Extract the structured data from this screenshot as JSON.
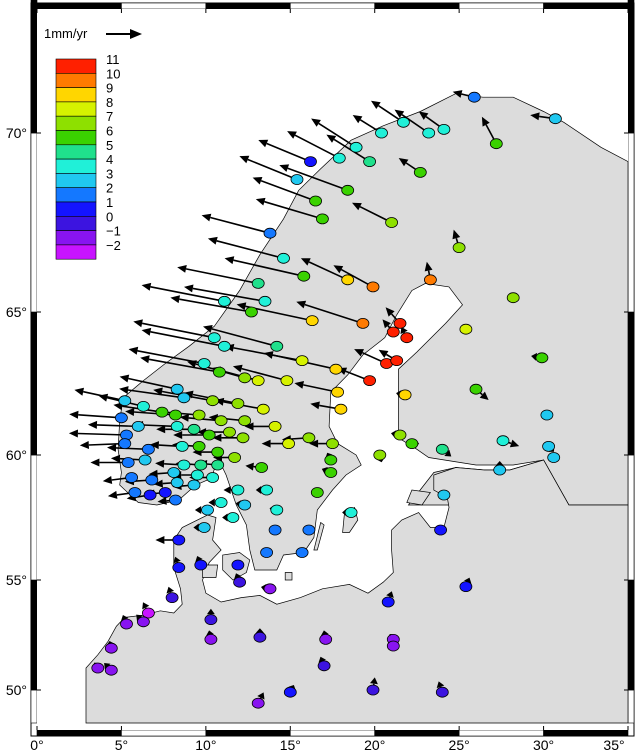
{
  "map": {
    "scale_label": "1mm/yr",
    "lon_ticks": [
      "0°",
      "5°",
      "10°",
      "15°",
      "20°",
      "25°",
      "30°",
      "35°"
    ],
    "lat_ticks": [
      "70°",
      "65°",
      "60°",
      "55°",
      "50°"
    ],
    "colors": {
      "land": "#dcdcdc",
      "sea": "#ffffff",
      "coastline": "#000000",
      "frame_dark": "#000000",
      "frame_light": "#ffffff",
      "arrow": "#000000"
    }
  },
  "legend": {
    "title": "",
    "labels": [
      "11",
      "10",
      "9",
      "8",
      "7",
      "6",
      "5",
      "4",
      "3",
      "2",
      "1",
      "0",
      "−1",
      "−2"
    ],
    "colors": [
      "#ff2000",
      "#ff7a00",
      "#ffd600",
      "#d6f200",
      "#8ee000",
      "#3ad200",
      "#20e08c",
      "#20f0d8",
      "#20c8f0",
      "#1478ff",
      "#1414ff",
      "#3c14e0",
      "#8814f0",
      "#c814ff"
    ]
  },
  "chart_data": {
    "type": "scatter",
    "title": "",
    "xlabel": "",
    "ylabel": "",
    "xlim": [
      0,
      35
    ],
    "ylim": [
      48.5,
      74
    ],
    "x_ticks": [
      0,
      5,
      10,
      15,
      20,
      25,
      30,
      35
    ],
    "y_ticks": [
      50,
      55,
      60,
      65,
      70
    ],
    "color_scale": {
      "label": "",
      "min": -2,
      "max": 11,
      "step": 1
    },
    "series": [
      {
        "marker_fields": [
          "lon",
          "lat",
          "vertical_mm_yr",
          "arrow_dx",
          "arrow_dy"
        ],
        "points": [
          [
            25.9,
            71.0,
            2,
            -1.2,
            0.3
          ],
          [
            30.7,
            70.4,
            3,
            -1.4,
            0.2
          ],
          [
            20.4,
            70.0,
            4,
            -1.6,
            1.0
          ],
          [
            21.7,
            70.3,
            4,
            -1.8,
            1.2
          ],
          [
            23.2,
            70.0,
            4,
            -1.9,
            1.3
          ],
          [
            27.2,
            69.7,
            6,
            -0.8,
            1.5
          ],
          [
            24.1,
            70.1,
            4,
            -1.4,
            1.0
          ],
          [
            18.9,
            69.6,
            4,
            -2.5,
            1.6
          ],
          [
            19.7,
            69.2,
            5,
            -2.4,
            1.5
          ],
          [
            17.9,
            69.3,
            4,
            -2.9,
            1.5
          ],
          [
            16.2,
            69.2,
            1,
            -2.9,
            1.2
          ],
          [
            15.4,
            68.7,
            3,
            -3.2,
            1.3
          ],
          [
            18.4,
            68.4,
            6,
            -3.8,
            1.4
          ],
          [
            16.5,
            68.1,
            6,
            -3.5,
            1.3
          ],
          [
            16.9,
            67.6,
            6,
            -3.7,
            1.1
          ],
          [
            22.7,
            68.9,
            6,
            -1.2,
            0.8
          ],
          [
            21.0,
            67.5,
            7,
            -2.2,
            1.1
          ],
          [
            13.8,
            67.2,
            2,
            -3.8,
            1.0
          ],
          [
            14.6,
            66.5,
            4,
            -4.2,
            1.1
          ],
          [
            15.8,
            66.0,
            6,
            -4.4,
            1.0
          ],
          [
            13.1,
            65.8,
            5,
            -4.5,
            0.9
          ],
          [
            13.5,
            65.3,
            4,
            -4.5,
            0.8
          ],
          [
            25.0,
            66.8,
            7,
            -0.3,
            1.0
          ],
          [
            18.4,
            65.9,
            9,
            -2.6,
            1.2
          ],
          [
            19.9,
            65.7,
            10,
            -2.2,
            1.2
          ],
          [
            23.3,
            65.9,
            10,
            -0.2,
            1.0
          ],
          [
            28.2,
            65.4,
            7,
            -0.2,
            0.2
          ],
          [
            11.1,
            65.3,
            4,
            -4.6,
            0.9
          ],
          [
            12.7,
            65.0,
            6,
            -4.5,
            0.8
          ],
          [
            16.3,
            64.7,
            9,
            -4.2,
            0.9
          ],
          [
            19.3,
            64.6,
            10,
            -3.7,
            1.2
          ],
          [
            21.5,
            64.6,
            11,
            -0.8,
            0.9
          ],
          [
            21.1,
            64.3,
            11,
            -0.6,
            0.7
          ],
          [
            21.9,
            64.1,
            11,
            -0.3,
            0.6
          ],
          [
            25.4,
            64.4,
            8,
            0.3,
            0.1
          ],
          [
            10.5,
            64.1,
            4,
            -4.5,
            0.9
          ],
          [
            11.1,
            63.8,
            4,
            -4.6,
            0.9
          ],
          [
            14.2,
            63.8,
            5,
            -4.1,
            1.1
          ],
          [
            15.7,
            63.3,
            8,
            -4.3,
            0.8
          ],
          [
            17.7,
            63.0,
            9,
            -4.0,
            0.9
          ],
          [
            20.7,
            63.2,
            11,
            -1.8,
            0.8
          ],
          [
            21.3,
            63.3,
            11,
            -1.0,
            0.6
          ],
          [
            19.7,
            62.6,
            11,
            -1.8,
            0.7
          ],
          [
            9.9,
            63.2,
            4,
            -4.2,
            0.8
          ],
          [
            10.8,
            62.9,
            6,
            -4.4,
            0.8
          ],
          [
            12.3,
            62.7,
            7,
            -3.2,
            0.9
          ],
          [
            13.1,
            62.6,
            8,
            -2.6,
            0.7
          ],
          [
            14.8,
            62.6,
            8,
            -3.0,
            0.8
          ],
          [
            17.8,
            62.2,
            9,
            -2.4,
            0.5
          ],
          [
            21.8,
            62.1,
            9,
            -0.5,
            0.1
          ],
          [
            29.9,
            63.4,
            6,
            -0.6,
            0.1
          ],
          [
            8.3,
            62.3,
            3,
            -3.2,
            0.7
          ],
          [
            8.7,
            62.0,
            3,
            -3.6,
            0.5
          ],
          [
            10.4,
            61.9,
            7,
            -3.3,
            0.6
          ],
          [
            11.9,
            61.8,
            7,
            -3.0,
            0.6
          ],
          [
            13.4,
            61.6,
            8,
            -2.7,
            0.5
          ],
          [
            18.0,
            61.6,
            9,
            -1.7,
            0.3
          ],
          [
            26.0,
            62.3,
            6,
            0.7,
            -0.6
          ],
          [
            30.2,
            61.4,
            3,
            -0.1,
            0.2
          ],
          [
            5.2,
            61.9,
            3,
            -2.8,
            0.6
          ],
          [
            6.3,
            61.7,
            4,
            -2.5,
            0.6
          ],
          [
            7.4,
            61.5,
            6,
            -2.7,
            0.4
          ],
          [
            8.2,
            61.4,
            6,
            -2.8,
            0.2
          ],
          [
            9.6,
            61.4,
            7,
            -2.5,
            0.2
          ],
          [
            10.9,
            61.2,
            7,
            -2.3,
            0.2
          ],
          [
            12.3,
            61.2,
            7,
            -2.0,
            0.2
          ],
          [
            14.1,
            61.0,
            8,
            -1.7,
            0.0
          ],
          [
            16.1,
            60.6,
            7,
            -1.5,
            -0.1
          ],
          [
            17.5,
            60.4,
            7,
            -1.3,
            0.0
          ],
          [
            21.5,
            60.7,
            7,
            -0.5,
            0.1
          ],
          [
            22.2,
            60.4,
            6,
            0.4,
            0.0
          ],
          [
            24.0,
            60.2,
            5,
            0.5,
            -0.4
          ],
          [
            27.6,
            60.5,
            4,
            0.9,
            -0.3
          ],
          [
            30.3,
            60.3,
            3,
            0.3,
            -0.3
          ],
          [
            30.6,
            59.9,
            3,
            -0.2,
            0.0
          ],
          [
            5.0,
            61.3,
            2,
            -2.9,
            0.2
          ],
          [
            5.3,
            60.7,
            2,
            -3.2,
            0.1
          ],
          [
            6.0,
            61.0,
            3,
            -2.8,
            0.1
          ],
          [
            8.3,
            61.0,
            4,
            -2.4,
            0.1
          ],
          [
            9.3,
            60.9,
            5,
            -2.1,
            0.0
          ],
          [
            10.2,
            60.7,
            6,
            -2.0,
            0.0
          ],
          [
            11.4,
            60.8,
            7,
            -1.8,
            0.0
          ],
          [
            12.2,
            60.6,
            7,
            -1.7,
            0.0
          ],
          [
            14.9,
            60.4,
            8,
            -1.5,
            0.0
          ],
          [
            5.2,
            60.4,
            2,
            -2.5,
            -0.1
          ],
          [
            6.6,
            60.2,
            2,
            -2.3,
            0.1
          ],
          [
            8.6,
            60.3,
            4,
            -1.8,
            0.1
          ],
          [
            9.6,
            60.3,
            6,
            -1.5,
            0.1
          ],
          [
            10.7,
            60.1,
            6,
            -1.4,
            0.0
          ],
          [
            11.7,
            59.9,
            7,
            -1.2,
            0.0
          ],
          [
            17.4,
            59.8,
            6,
            -0.2,
            0.4
          ],
          [
            20.3,
            60.0,
            7,
            0.1,
            -0.4
          ],
          [
            27.4,
            59.4,
            3,
            0.0,
            0.5
          ],
          [
            5.4,
            59.7,
            2,
            -2.1,
            0.0
          ],
          [
            6.4,
            59.8,
            3,
            -1.9,
            0.1
          ],
          [
            8.7,
            59.6,
            4,
            -1.6,
            0.1
          ],
          [
            9.7,
            59.6,
            5,
            -1.4,
            0.1
          ],
          [
            10.7,
            59.6,
            5,
            -1.1,
            0.1
          ],
          [
            13.3,
            59.5,
            6,
            -0.9,
            0.1
          ],
          [
            17.4,
            59.3,
            6,
            -0.5,
            0.2
          ],
          [
            8.1,
            59.3,
            3,
            -1.4,
            -0.1
          ],
          [
            9.5,
            59.2,
            4,
            -1.4,
            0.0
          ],
          [
            10.4,
            59.1,
            4,
            -1.3,
            0.0
          ],
          [
            5.6,
            59.1,
            2,
            -1.6,
            -0.2
          ],
          [
            6.8,
            59.0,
            2,
            -1.5,
            -0.1
          ],
          [
            8.3,
            58.9,
            3,
            -1.3,
            -0.1
          ],
          [
            9.3,
            58.8,
            3,
            -1.2,
            -0.1
          ],
          [
            11.9,
            58.6,
            4,
            -0.8,
            0.0
          ],
          [
            13.6,
            58.6,
            4,
            -0.6,
            0.0
          ],
          [
            16.6,
            58.5,
            6,
            -0.3,
            0.1
          ],
          [
            5.8,
            58.5,
            2,
            -1.5,
            -0.2
          ],
          [
            6.7,
            58.4,
            1,
            -1.3,
            -0.2
          ],
          [
            7.6,
            58.5,
            1,
            -1.1,
            -0.1
          ],
          [
            8.2,
            58.2,
            2,
            -1.0,
            -0.1
          ],
          [
            10.9,
            58.1,
            4,
            -0.7,
            0.0
          ],
          [
            12.3,
            58.0,
            3,
            -0.5,
            0.1
          ],
          [
            14.2,
            57.8,
            4,
            -0.4,
            0.1
          ],
          [
            18.6,
            57.7,
            4,
            -0.5,
            0.0
          ],
          [
            24.1,
            58.4,
            3,
            0.3,
            0.0
          ],
          [
            10.1,
            57.8,
            3,
            -0.7,
            0.0
          ],
          [
            11.6,
            57.5,
            4,
            -0.6,
            0.0
          ],
          [
            9.9,
            57.1,
            3,
            -0.6,
            0.0
          ],
          [
            14.1,
            57.0,
            2,
            -0.3,
            0.0
          ],
          [
            16.1,
            57.0,
            2,
            -0.2,
            0.1
          ],
          [
            23.9,
            57.0,
            1,
            0.2,
            0.0
          ],
          [
            8.4,
            56.6,
            1,
            -1.3,
            0.0
          ],
          [
            13.6,
            56.1,
            2,
            -0.3,
            0.0
          ],
          [
            15.7,
            56.1,
            2,
            -0.2,
            0.0
          ],
          [
            8.4,
            55.5,
            1,
            -0.2,
            0.6
          ],
          [
            9.7,
            55.6,
            1,
            -0.2,
            0.5
          ],
          [
            11.9,
            55.6,
            1,
            -0.2,
            0.2
          ],
          [
            12.0,
            54.9,
            0,
            -0.2,
            0.5
          ],
          [
            13.8,
            54.6,
            -1,
            -0.5,
            0.1
          ],
          [
            8.0,
            54.2,
            0,
            -0.2,
            0.6
          ],
          [
            6.6,
            53.5,
            -2,
            -0.3,
            0.6
          ],
          [
            6.3,
            53.1,
            -1,
            -0.4,
            0.4
          ],
          [
            5.3,
            53.0,
            -1,
            -0.2,
            0.5
          ],
          [
            25.4,
            54.7,
            1,
            0.2,
            0.5
          ],
          [
            20.8,
            54.0,
            1,
            0.2,
            0.6
          ],
          [
            10.3,
            53.2,
            0,
            0.0,
            0.6
          ],
          [
            13.2,
            52.4,
            0,
            0.0,
            0.5
          ],
          [
            10.3,
            52.3,
            -1,
            -0.1,
            0.5
          ],
          [
            17.1,
            52.3,
            -1,
            -0.1,
            0.5
          ],
          [
            21.1,
            52.3,
            -1,
            -0.2,
            0.3
          ],
          [
            21.1,
            52.0,
            -1,
            -0.1,
            0.2
          ],
          [
            4.4,
            51.9,
            -1,
            -0.1,
            0.4
          ],
          [
            3.6,
            51.0,
            -1,
            -0.2,
            0.3
          ],
          [
            4.4,
            50.9,
            -1,
            -0.4,
            0.4
          ],
          [
            17.0,
            51.1,
            0,
            -0.2,
            0.5
          ],
          [
            24.0,
            49.9,
            0,
            -0.2,
            0.6
          ],
          [
            15.0,
            49.9,
            1,
            0.2,
            0.4
          ],
          [
            19.9,
            50.0,
            0,
            0.1,
            0.7
          ],
          [
            13.1,
            49.4,
            -1,
            0.3,
            0.6
          ]
        ]
      }
    ]
  }
}
